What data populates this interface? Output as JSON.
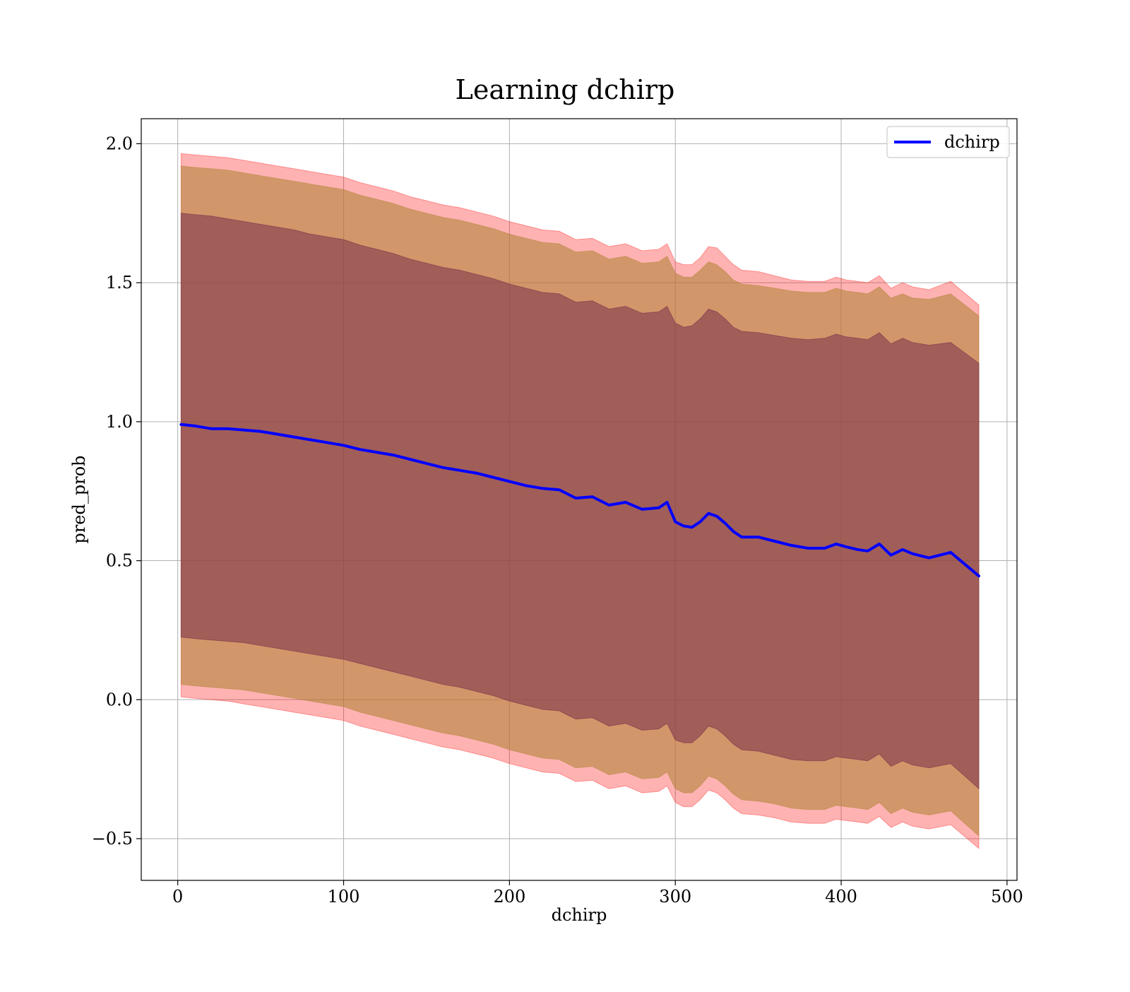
{
  "chart_data": {
    "type": "line",
    "title": "Learning dchirp",
    "xlabel": "dchirp",
    "ylabel": "pred_prob",
    "xlim": [
      -22,
      506
    ],
    "ylim": [
      -0.65,
      2.09
    ],
    "xticks": [
      0,
      100,
      200,
      300,
      400,
      500
    ],
    "xtick_labels": [
      "0",
      "100",
      "200",
      "300",
      "400",
      "500"
    ],
    "yticks": [
      -0.5,
      0.0,
      0.5,
      1.0,
      1.5,
      2.0
    ],
    "ytick_labels": [
      "−0.5",
      "0.0",
      "0.5",
      "1.0",
      "1.5",
      "2.0"
    ],
    "grid": true,
    "legend": {
      "position": "top-right",
      "entries": [
        "dchirp"
      ]
    },
    "colors": {
      "line": "#0000ff",
      "outer_band": "#ff0000",
      "middle_band": "#b2853a",
      "inner_band": "#7a2f4a",
      "grid": "#b0b0b0"
    },
    "series": [
      {
        "name": "dchirp",
        "x": [
          2,
          10,
          20,
          30,
          40,
          50,
          60,
          70,
          80,
          90,
          100,
          110,
          120,
          130,
          140,
          150,
          160,
          170,
          180,
          190,
          200,
          210,
          220,
          230,
          240,
          250,
          260,
          270,
          280,
          290,
          295,
          300,
          305,
          310,
          315,
          320,
          325,
          330,
          335,
          340,
          350,
          360,
          370,
          380,
          390,
          397,
          403,
          410,
          416,
          423,
          430,
          437,
          443,
          453,
          466,
          483
        ],
        "y": [
          0.99,
          0.985,
          0.975,
          0.975,
          0.97,
          0.965,
          0.955,
          0.945,
          0.935,
          0.925,
          0.915,
          0.9,
          0.89,
          0.88,
          0.865,
          0.85,
          0.835,
          0.825,
          0.815,
          0.8,
          0.785,
          0.77,
          0.76,
          0.755,
          0.725,
          0.73,
          0.7,
          0.71,
          0.685,
          0.69,
          0.71,
          0.64,
          0.625,
          0.62,
          0.64,
          0.67,
          0.66,
          0.635,
          0.605,
          0.585,
          0.585,
          0.57,
          0.555,
          0.545,
          0.545,
          0.56,
          0.55,
          0.54,
          0.535,
          0.56,
          0.52,
          0.54,
          0.525,
          0.51,
          0.53,
          0.445
        ],
        "band_outer_upper": [
          1.965,
          1.96,
          1.955,
          1.95,
          1.94,
          1.93,
          1.92,
          1.91,
          1.9,
          1.89,
          1.88,
          1.86,
          1.845,
          1.83,
          1.81,
          1.795,
          1.78,
          1.77,
          1.755,
          1.74,
          1.72,
          1.705,
          1.69,
          1.685,
          1.655,
          1.66,
          1.63,
          1.64,
          1.615,
          1.62,
          1.64,
          1.575,
          1.565,
          1.565,
          1.59,
          1.63,
          1.625,
          1.595,
          1.565,
          1.545,
          1.54,
          1.525,
          1.51,
          1.505,
          1.505,
          1.52,
          1.51,
          1.505,
          1.5,
          1.525,
          1.48,
          1.5,
          1.485,
          1.475,
          1.505,
          1.42
        ],
        "band_middle_upper": [
          1.92,
          1.915,
          1.91,
          1.905,
          1.895,
          1.885,
          1.875,
          1.865,
          1.855,
          1.845,
          1.835,
          1.815,
          1.8,
          1.785,
          1.765,
          1.75,
          1.735,
          1.725,
          1.71,
          1.695,
          1.675,
          1.66,
          1.645,
          1.64,
          1.61,
          1.615,
          1.585,
          1.595,
          1.57,
          1.575,
          1.595,
          1.535,
          1.52,
          1.52,
          1.545,
          1.575,
          1.565,
          1.54,
          1.51,
          1.495,
          1.49,
          1.48,
          1.47,
          1.465,
          1.465,
          1.48,
          1.47,
          1.465,
          1.46,
          1.485,
          1.445,
          1.46,
          1.445,
          1.44,
          1.46,
          1.38
        ],
        "band_inner_upper": [
          1.75,
          1.745,
          1.74,
          1.73,
          1.72,
          1.71,
          1.7,
          1.69,
          1.675,
          1.665,
          1.655,
          1.635,
          1.62,
          1.605,
          1.585,
          1.57,
          1.555,
          1.545,
          1.53,
          1.515,
          1.495,
          1.48,
          1.465,
          1.46,
          1.43,
          1.435,
          1.405,
          1.415,
          1.39,
          1.395,
          1.415,
          1.355,
          1.34,
          1.345,
          1.37,
          1.405,
          1.395,
          1.37,
          1.34,
          1.325,
          1.32,
          1.31,
          1.3,
          1.295,
          1.3,
          1.315,
          1.305,
          1.3,
          1.295,
          1.32,
          1.28,
          1.3,
          1.285,
          1.275,
          1.285,
          1.21
        ],
        "band_inner_lower": [
          0.225,
          0.22,
          0.215,
          0.21,
          0.205,
          0.195,
          0.185,
          0.175,
          0.165,
          0.155,
          0.145,
          0.13,
          0.115,
          0.1,
          0.085,
          0.07,
          0.055,
          0.045,
          0.03,
          0.015,
          -0.005,
          -0.02,
          -0.035,
          -0.04,
          -0.07,
          -0.065,
          -0.095,
          -0.085,
          -0.11,
          -0.105,
          -0.085,
          -0.145,
          -0.155,
          -0.155,
          -0.13,
          -0.095,
          -0.105,
          -0.13,
          -0.16,
          -0.18,
          -0.185,
          -0.2,
          -0.215,
          -0.22,
          -0.22,
          -0.205,
          -0.21,
          -0.215,
          -0.22,
          -0.195,
          -0.24,
          -0.22,
          -0.235,
          -0.245,
          -0.23,
          -0.32
        ],
        "band_middle_lower": [
          0.055,
          0.05,
          0.045,
          0.04,
          0.035,
          0.025,
          0.015,
          0.005,
          -0.005,
          -0.015,
          -0.025,
          -0.045,
          -0.06,
          -0.075,
          -0.09,
          -0.105,
          -0.12,
          -0.13,
          -0.145,
          -0.16,
          -0.18,
          -0.195,
          -0.21,
          -0.215,
          -0.245,
          -0.24,
          -0.27,
          -0.26,
          -0.285,
          -0.28,
          -0.26,
          -0.32,
          -0.335,
          -0.335,
          -0.31,
          -0.275,
          -0.285,
          -0.31,
          -0.34,
          -0.36,
          -0.365,
          -0.375,
          -0.39,
          -0.395,
          -0.395,
          -0.38,
          -0.385,
          -0.39,
          -0.395,
          -0.37,
          -0.41,
          -0.39,
          -0.405,
          -0.415,
          -0.4,
          -0.49
        ],
        "band_outer_lower": [
          0.01,
          0.005,
          0.0,
          -0.005,
          -0.015,
          -0.025,
          -0.035,
          -0.045,
          -0.055,
          -0.065,
          -0.075,
          -0.095,
          -0.11,
          -0.125,
          -0.14,
          -0.155,
          -0.17,
          -0.18,
          -0.195,
          -0.21,
          -0.23,
          -0.245,
          -0.26,
          -0.265,
          -0.295,
          -0.29,
          -0.32,
          -0.31,
          -0.335,
          -0.33,
          -0.31,
          -0.37,
          -0.385,
          -0.385,
          -0.36,
          -0.325,
          -0.335,
          -0.36,
          -0.39,
          -0.41,
          -0.415,
          -0.425,
          -0.44,
          -0.445,
          -0.445,
          -0.43,
          -0.435,
          -0.44,
          -0.445,
          -0.42,
          -0.46,
          -0.44,
          -0.455,
          -0.465,
          -0.45,
          -0.535
        ]
      }
    ]
  }
}
